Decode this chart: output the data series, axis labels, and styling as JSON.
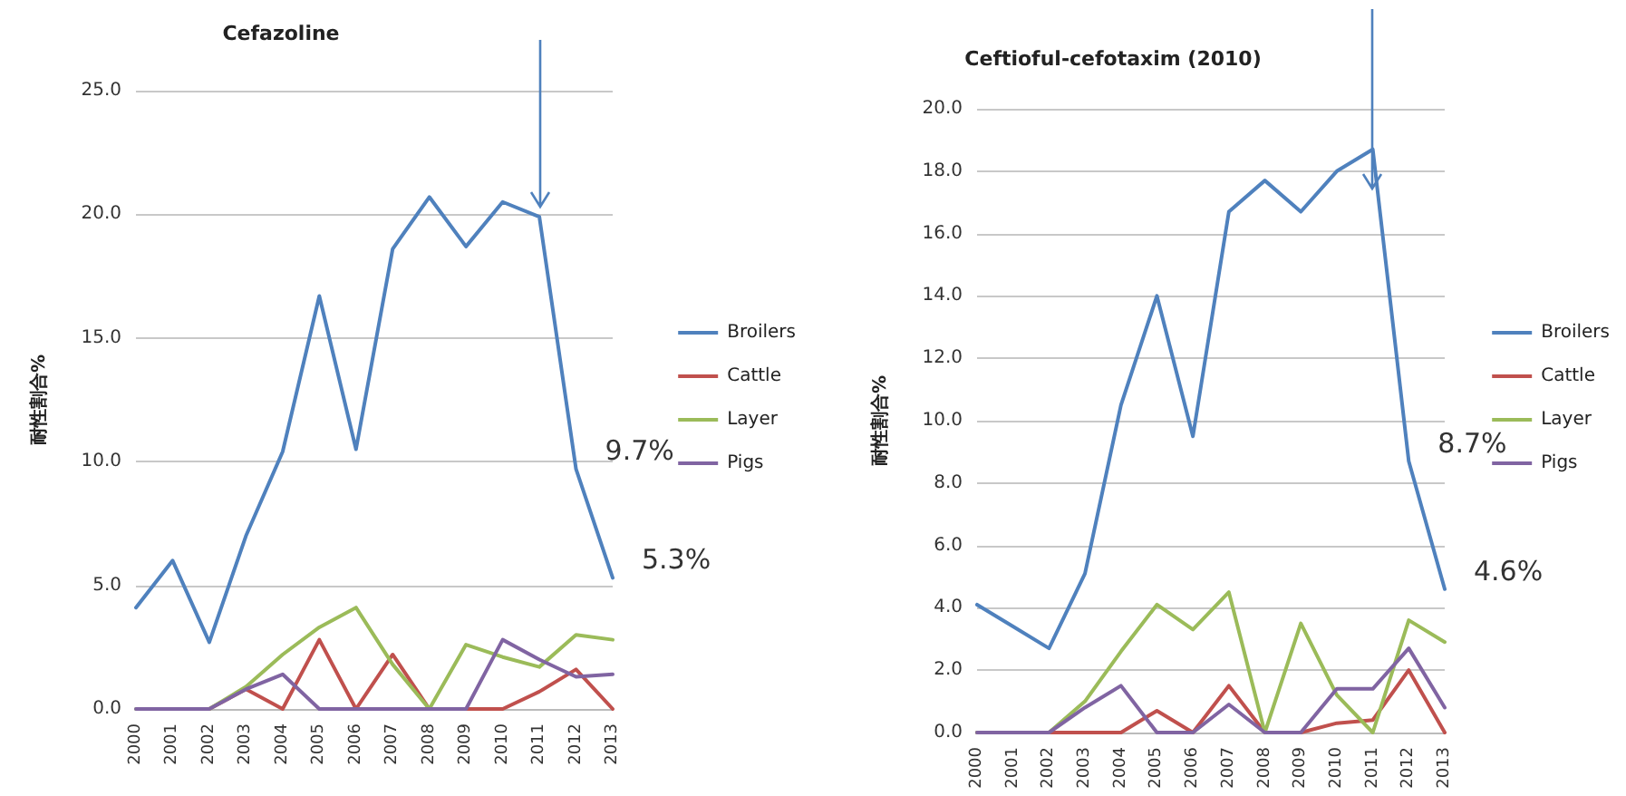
{
  "chart_data": [
    {
      "type": "line",
      "title": "Cefazoline",
      "ylabel": "耐性割合%",
      "categories": [
        "2000",
        "2001",
        "2002",
        "2003",
        "2004",
        "2005",
        "2006",
        "2007",
        "2008",
        "2009",
        "2010",
        "2011",
        "2012",
        "2013"
      ],
      "series": [
        {
          "name": "Broilers",
          "color": "#4f81bd",
          "values": [
            4.1,
            6.0,
            2.7,
            7.0,
            10.4,
            16.7,
            10.5,
            18.6,
            20.7,
            18.7,
            20.5,
            19.9,
            9.7,
            5.3
          ]
        },
        {
          "name": "Cattle",
          "color": "#c0504d",
          "values": [
            null,
            null,
            0,
            0.8,
            0,
            2.8,
            0,
            2.2,
            0,
            0,
            0,
            0.7,
            1.6,
            0
          ]
        },
        {
          "name": "Layer",
          "color": "#9bbb59",
          "values": [
            0,
            0,
            0,
            0.9,
            2.2,
            3.3,
            4.1,
            1.8,
            0,
            2.6,
            2.1,
            1.7,
            3.0,
            2.8
          ]
        },
        {
          "name": "Pigs",
          "color": "#8064a2",
          "values": [
            0,
            0,
            0,
            0.8,
            1.4,
            0,
            0,
            0,
            0,
            0,
            2.8,
            2.0,
            1.3,
            1.4
          ]
        }
      ],
      "ylim": [
        0,
        25
      ],
      "yticks": [
        {
          "value": 0,
          "label": "0.0"
        },
        {
          "value": 5,
          "label": "5.0"
        },
        {
          "value": 10,
          "label": "10.0"
        },
        {
          "value": 15,
          "label": "15.0"
        },
        {
          "value": 20,
          "label": "20.0"
        },
        {
          "value": 25,
          "label": "25.0"
        }
      ],
      "annotations": [
        {
          "text": "9.7%",
          "x": "2012",
          "y": 9.7
        },
        {
          "text": "5.3%",
          "x": "2013",
          "y": 5.3
        }
      ],
      "grid": "y",
      "legend": "right",
      "marker": "none",
      "line_style": "solid"
    },
    {
      "type": "line",
      "title": "Ceftioful-cefotaxim (2010)",
      "ylabel": "耐性割合%",
      "categories": [
        "2000",
        "2001",
        "2002",
        "2003",
        "2004",
        "2005",
        "2006",
        "2007",
        "2008",
        "2009",
        "2010",
        "2011",
        "2012",
        "2013"
      ],
      "series": [
        {
          "name": "Broilers",
          "color": "#4f81bd",
          "values": [
            4.1,
            3.4,
            2.7,
            5.1,
            10.5,
            14.0,
            9.5,
            16.7,
            17.7,
            16.7,
            18.0,
            18.7,
            8.7,
            4.6
          ]
        },
        {
          "name": "Cattle",
          "color": "#c0504d",
          "values": [
            0,
            0,
            0,
            0,
            0,
            0.7,
            0,
            1.5,
            0,
            0,
            0.3,
            0.4,
            2.0,
            0
          ]
        },
        {
          "name": "Layer",
          "color": "#9bbb59",
          "values": [
            0,
            0,
            0,
            1.0,
            2.6,
            4.1,
            3.3,
            4.5,
            0,
            3.5,
            1.2,
            0,
            3.6,
            2.9
          ]
        },
        {
          "name": "Pigs",
          "color": "#8064a2",
          "values": [
            0,
            0,
            0,
            0.8,
            1.5,
            0,
            0,
            0.9,
            0,
            0,
            1.4,
            1.4,
            2.7,
            0.8
          ]
        }
      ],
      "ylim": [
        0,
        20
      ],
      "yticks": [
        {
          "value": 0,
          "label": "0.0"
        },
        {
          "value": 2,
          "label": "2.0"
        },
        {
          "value": 4,
          "label": "4.0"
        },
        {
          "value": 6,
          "label": "6.0"
        },
        {
          "value": 8,
          "label": "8.0"
        },
        {
          "value": 10,
          "label": "10.0"
        },
        {
          "value": 12,
          "label": "12.0"
        },
        {
          "value": 14,
          "label": "14.0"
        },
        {
          "value": 16,
          "label": "16.0"
        },
        {
          "value": 18,
          "label": "18.0"
        },
        {
          "value": 20,
          "label": "20.0"
        }
      ],
      "annotations": [
        {
          "text": "8.7%",
          "x": "2012",
          "y": 8.7
        },
        {
          "text": "4.6%",
          "x": "2013",
          "y": 4.6
        }
      ],
      "grid": "y",
      "legend": "right",
      "marker": "none",
      "line_style": "solid"
    }
  ]
}
